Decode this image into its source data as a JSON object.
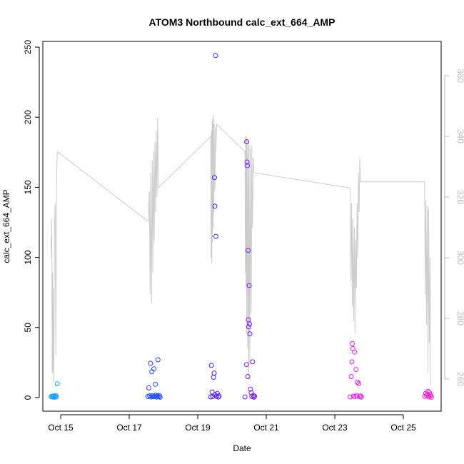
{
  "chart_data": {
    "type": "scatter",
    "title": "ATOM3 Northbound calc_ext_664_AMP",
    "xlabel": "Date",
    "ylabel": "calc_ext_664_AMP",
    "ylim": [
      0,
      250
    ],
    "yticks": [
      "0",
      "50",
      "100",
      "150",
      "200",
      "250"
    ],
    "y2lim": [
      255,
      365
    ],
    "y2ticks": [
      "260",
      "280",
      "300",
      "320",
      "340",
      "360"
    ],
    "xlim_days": [
      14.6,
      25.95
    ],
    "xticks": [
      {
        "value": 15,
        "label": "Oct 15"
      },
      {
        "value": 17,
        "label": "Oct 17"
      },
      {
        "value": 19,
        "label": "Oct 19"
      },
      {
        "value": 21,
        "label": "Oct 21"
      },
      {
        "value": 23,
        "label": "Oct 23"
      },
      {
        "value": 25,
        "label": "Oct 25"
      }
    ],
    "grid": false,
    "colors": {
      "line": "#cccccc",
      "right_axis": "#bdbdbd",
      "point_gradient": [
        "#1ea7ff",
        "#0a5cff",
        "#3a1cff",
        "#a01cff",
        "#e81cff",
        "#ff1ccc"
      ]
    },
    "series": [
      {
        "values": [
          {
            "x": 14.72,
            "y": 0.6
          },
          {
            "x": 14.75,
            "y": 1.0
          },
          {
            "x": 14.77,
            "y": 0.4
          },
          {
            "x": 14.78,
            "y": 0.9
          },
          {
            "x": 14.8,
            "y": 1.2
          },
          {
            "x": 14.82,
            "y": 0.3
          },
          {
            "x": 14.84,
            "y": 0.8
          },
          {
            "x": 14.86,
            "y": 1.5
          },
          {
            "x": 14.87,
            "y": 0.5
          },
          {
            "x": 14.9,
            "y": 9.8
          },
          {
            "x": 17.55,
            "y": 0.8
          },
          {
            "x": 17.57,
            "y": 6.9
          },
          {
            "x": 17.6,
            "y": 1.2
          },
          {
            "x": 17.62,
            "y": 24.5
          },
          {
            "x": 17.64,
            "y": 0.5
          },
          {
            "x": 17.66,
            "y": 18.5
          },
          {
            "x": 17.68,
            "y": 1.4
          },
          {
            "x": 17.7,
            "y": 0.6
          },
          {
            "x": 17.72,
            "y": 20.5
          },
          {
            "x": 17.74,
            "y": 0.9
          },
          {
            "x": 17.76,
            "y": 9.5
          },
          {
            "x": 17.78,
            "y": 1.8
          },
          {
            "x": 17.8,
            "y": 0.4
          },
          {
            "x": 17.82,
            "y": 1.1
          },
          {
            "x": 17.84,
            "y": 27.0
          },
          {
            "x": 17.86,
            "y": 0.7
          },
          {
            "x": 17.88,
            "y": 1.5
          },
          {
            "x": 17.9,
            "y": 0.3
          },
          {
            "x": 19.38,
            "y": 0.5
          },
          {
            "x": 19.4,
            "y": 23.0
          },
          {
            "x": 19.42,
            "y": 4.0
          },
          {
            "x": 19.44,
            "y": 0.8
          },
          {
            "x": 19.46,
            "y": 14.5
          },
          {
            "x": 19.48,
            "y": 17.5
          },
          {
            "x": 19.49,
            "y": 157.0
          },
          {
            "x": 19.5,
            "y": 136.5
          },
          {
            "x": 19.51,
            "y": 2.0
          },
          {
            "x": 19.52,
            "y": 244.0
          },
          {
            "x": 19.53,
            "y": 115.0
          },
          {
            "x": 19.55,
            "y": 0.9
          },
          {
            "x": 19.57,
            "y": 3.0
          },
          {
            "x": 19.6,
            "y": 0.4
          },
          {
            "x": 19.62,
            "y": 1.2
          },
          {
            "x": 20.38,
            "y": 0.5
          },
          {
            "x": 20.42,
            "y": 23.5
          },
          {
            "x": 20.43,
            "y": 182.5
          },
          {
            "x": 20.44,
            "y": 168.0
          },
          {
            "x": 20.45,
            "y": 165.5
          },
          {
            "x": 20.46,
            "y": 15.0
          },
          {
            "x": 20.47,
            "y": 105.0
          },
          {
            "x": 20.48,
            "y": 55.5
          },
          {
            "x": 20.49,
            "y": 50.5
          },
          {
            "x": 20.5,
            "y": 80.0
          },
          {
            "x": 20.51,
            "y": 52.5
          },
          {
            "x": 20.52,
            "y": 45.5
          },
          {
            "x": 20.54,
            "y": 6.0
          },
          {
            "x": 20.56,
            "y": 3.5
          },
          {
            "x": 20.58,
            "y": 0.8
          },
          {
            "x": 20.6,
            "y": 25.5
          },
          {
            "x": 20.62,
            "y": 1.5
          },
          {
            "x": 20.64,
            "y": 0.3
          },
          {
            "x": 20.66,
            "y": 1.0
          },
          {
            "x": 23.45,
            "y": 0.5
          },
          {
            "x": 23.48,
            "y": 15.0
          },
          {
            "x": 23.5,
            "y": 25.5
          },
          {
            "x": 23.51,
            "y": 38.5
          },
          {
            "x": 23.53,
            "y": 35.0
          },
          {
            "x": 23.55,
            "y": 1.0
          },
          {
            "x": 23.58,
            "y": 32.5
          },
          {
            "x": 23.6,
            "y": 0.8
          },
          {
            "x": 23.62,
            "y": 20.0
          },
          {
            "x": 23.64,
            "y": 1.5
          },
          {
            "x": 23.66,
            "y": 11.0
          },
          {
            "x": 23.7,
            "y": 10.0
          },
          {
            "x": 23.72,
            "y": 0.6
          },
          {
            "x": 23.75,
            "y": 1.2
          },
          {
            "x": 23.78,
            "y": 0.4
          },
          {
            "x": 25.62,
            "y": 0.8
          },
          {
            "x": 25.65,
            "y": 3.0
          },
          {
            "x": 25.68,
            "y": 1.5
          },
          {
            "x": 25.7,
            "y": 2.5
          },
          {
            "x": 25.72,
            "y": 4.5
          },
          {
            "x": 25.74,
            "y": 0.5
          },
          {
            "x": 25.76,
            "y": 3.5
          },
          {
            "x": 25.78,
            "y": 1.0
          },
          {
            "x": 25.8,
            "y": 2.0
          },
          {
            "x": 25.82,
            "y": 0.3
          }
        ]
      },
      {
        "axis": "right",
        "type": "line",
        "values": [
          {
            "x": 14.72,
            "y": 307
          },
          {
            "x": 14.73,
            "y": 300
          },
          {
            "x": 14.74,
            "y": 313
          },
          {
            "x": 14.75,
            "y": 262
          },
          {
            "x": 14.76,
            "y": 295
          },
          {
            "x": 14.77,
            "y": 262
          },
          {
            "x": 14.78,
            "y": 290
          },
          {
            "x": 14.8,
            "y": 259
          },
          {
            "x": 14.82,
            "y": 312
          },
          {
            "x": 14.84,
            "y": 318
          },
          {
            "x": 14.86,
            "y": 268
          },
          {
            "x": 14.88,
            "y": 324
          },
          {
            "x": 14.9,
            "y": 335
          },
          {
            "x": 17.55,
            "y": 312
          },
          {
            "x": 17.57,
            "y": 318
          },
          {
            "x": 17.59,
            "y": 322
          },
          {
            "x": 17.61,
            "y": 288
          },
          {
            "x": 17.63,
            "y": 328
          },
          {
            "x": 17.65,
            "y": 285
          },
          {
            "x": 17.67,
            "y": 332
          },
          {
            "x": 17.69,
            "y": 295
          },
          {
            "x": 17.71,
            "y": 335
          },
          {
            "x": 17.73,
            "y": 305
          },
          {
            "x": 17.75,
            "y": 338
          },
          {
            "x": 17.77,
            "y": 315
          },
          {
            "x": 17.79,
            "y": 342
          },
          {
            "x": 17.81,
            "y": 320
          },
          {
            "x": 17.83,
            "y": 346
          },
          {
            "x": 17.85,
            "y": 323
          },
          {
            "x": 19.38,
            "y": 340
          },
          {
            "x": 19.39,
            "y": 300
          },
          {
            "x": 19.4,
            "y": 342
          },
          {
            "x": 19.41,
            "y": 298
          },
          {
            "x": 19.42,
            "y": 345
          },
          {
            "x": 19.43,
            "y": 305
          },
          {
            "x": 19.44,
            "y": 346
          },
          {
            "x": 19.45,
            "y": 310
          },
          {
            "x": 19.46,
            "y": 347
          },
          {
            "x": 19.47,
            "y": 315
          },
          {
            "x": 19.48,
            "y": 344
          },
          {
            "x": 19.5,
            "y": 322
          },
          {
            "x": 19.52,
            "y": 343
          },
          {
            "x": 19.53,
            "y": 335
          },
          {
            "x": 19.55,
            "y": 344
          },
          {
            "x": 20.38,
            "y": 335
          },
          {
            "x": 20.39,
            "y": 295
          },
          {
            "x": 20.4,
            "y": 340
          },
          {
            "x": 20.41,
            "y": 290
          },
          {
            "x": 20.42,
            "y": 340
          },
          {
            "x": 20.43,
            "y": 275
          },
          {
            "x": 20.44,
            "y": 339
          },
          {
            "x": 20.46,
            "y": 270
          },
          {
            "x": 20.47,
            "y": 338
          },
          {
            "x": 20.49,
            "y": 260
          },
          {
            "x": 20.5,
            "y": 337
          },
          {
            "x": 20.52,
            "y": 265
          },
          {
            "x": 20.54,
            "y": 336
          },
          {
            "x": 20.56,
            "y": 282
          },
          {
            "x": 20.58,
            "y": 337
          },
          {
            "x": 20.6,
            "y": 310
          },
          {
            "x": 20.62,
            "y": 333
          },
          {
            "x": 20.64,
            "y": 328
          },
          {
            "x": 23.45,
            "y": 323
          },
          {
            "x": 23.47,
            "y": 292
          },
          {
            "x": 23.49,
            "y": 318
          },
          {
            "x": 23.51,
            "y": 284
          },
          {
            "x": 23.53,
            "y": 313
          },
          {
            "x": 23.55,
            "y": 279
          },
          {
            "x": 23.57,
            "y": 310
          },
          {
            "x": 23.59,
            "y": 275
          },
          {
            "x": 23.61,
            "y": 306
          },
          {
            "x": 23.63,
            "y": 290
          },
          {
            "x": 23.65,
            "y": 318
          },
          {
            "x": 23.67,
            "y": 300
          },
          {
            "x": 23.69,
            "y": 328
          },
          {
            "x": 23.71,
            "y": 315
          },
          {
            "x": 23.73,
            "y": 333
          },
          {
            "x": 23.75,
            "y": 325
          },
          {
            "x": 25.62,
            "y": 325
          },
          {
            "x": 25.64,
            "y": 288
          },
          {
            "x": 25.66,
            "y": 319
          },
          {
            "x": 25.68,
            "y": 278
          },
          {
            "x": 25.7,
            "y": 317
          },
          {
            "x": 25.72,
            "y": 262
          },
          {
            "x": 25.74,
            "y": 316
          },
          {
            "x": 25.76,
            "y": 272
          },
          {
            "x": 25.78,
            "y": 300
          },
          {
            "x": 25.8,
            "y": 258
          }
        ]
      }
    ]
  }
}
